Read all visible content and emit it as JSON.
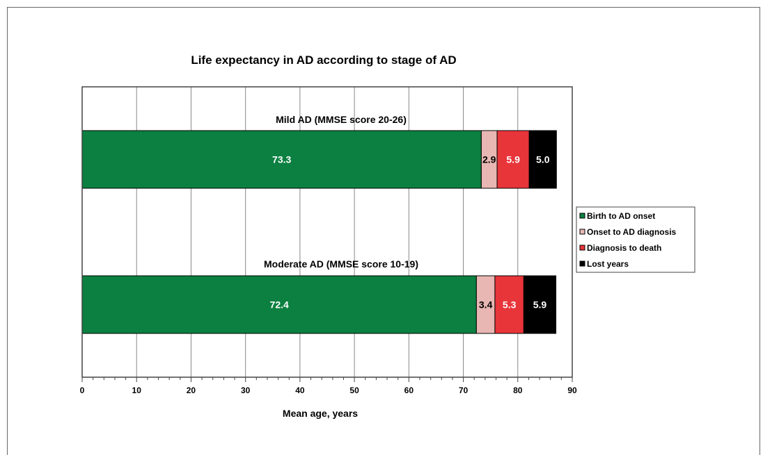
{
  "chart_data": {
    "type": "bar",
    "orientation": "horizontal",
    "stacked": true,
    "title": "Life expectancy in AD according to stage of AD",
    "xlabel": "Mean age, years",
    "ylabel": "",
    "xlim": [
      0,
      90
    ],
    "xticks": [
      "0",
      "10",
      "20",
      "30",
      "40",
      "50",
      "60",
      "70",
      "80",
      "90"
    ],
    "grid": true,
    "legend_position": "right",
    "categories": [
      "Mild AD (MMSE score 20-26)",
      "Moderate AD (MMSE score 10-19)"
    ],
    "series": [
      {
        "name": "Birth to AD onset",
        "values": [
          73.3,
          72.4
        ],
        "labels": [
          "73.3",
          "72.4"
        ],
        "color": "#0b8040",
        "label_color": "#ffffff"
      },
      {
        "name": "Onset to AD diagnosis",
        "values": [
          2.9,
          3.4
        ],
        "labels": [
          "2.9",
          "3.4"
        ],
        "color": "#e8b7b3",
        "label_color": "#000000"
      },
      {
        "name": "Diagnosis to death",
        "values": [
          5.9,
          5.3
        ],
        "labels": [
          "5.9",
          "5.3"
        ],
        "color": "#e8353a",
        "label_color": "#ffffff"
      },
      {
        "name": "Lost years",
        "values": [
          5.0,
          5.9
        ],
        "labels": [
          "5.0",
          "5.9"
        ],
        "color": "#000000",
        "label_color": "#ffffff"
      }
    ]
  }
}
